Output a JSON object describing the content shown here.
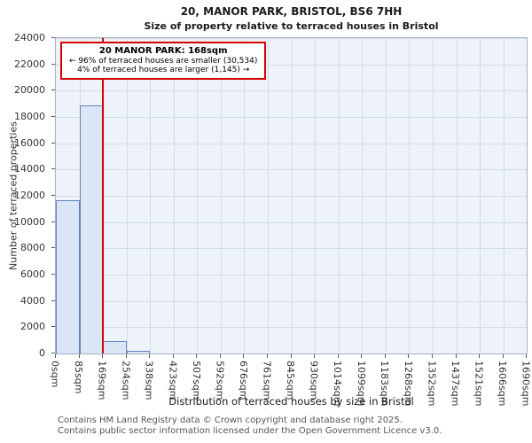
{
  "title": {
    "line1": "20, MANOR PARK, BRISTOL, BS6 7HH",
    "line2": "Size of property relative to terraced houses in Bristol"
  },
  "annotation": {
    "line1": "20 MANOR PARK: 168sqm",
    "line2": "← 96% of terraced houses are smaller (30,534)",
    "line3": "4% of terraced houses are larger (1,145) →"
  },
  "chart_data": {
    "type": "bar",
    "title": "20, MANOR PARK, BRISTOL, BS6 7HH — Size of property relative to terraced houses in Bristol",
    "xlabel": "Distribution of terraced houses by size in Bristol",
    "ylabel": "Number of terraced properties",
    "xlim": [
      0,
      1690
    ],
    "ylim": [
      0,
      24000
    ],
    "y_ticks": [
      0,
      2000,
      4000,
      6000,
      8000,
      10000,
      12000,
      14000,
      16000,
      18000,
      20000,
      22000,
      24000
    ],
    "bin_edges_sqm": [
      0,
      85,
      169,
      254,
      338,
      423,
      507,
      592,
      676,
      761,
      845,
      930,
      1014,
      1099,
      1183,
      1268,
      1352,
      1437,
      1521,
      1606,
      1690
    ],
    "x_tick_labels": [
      "0sqm",
      "85sqm",
      "169sqm",
      "254sqm",
      "338sqm",
      "423sqm",
      "507sqm",
      "592sqm",
      "676sqm",
      "761sqm",
      "845sqm",
      "930sqm",
      "1014sqm",
      "1099sqm",
      "1183sqm",
      "1268sqm",
      "1352sqm",
      "1437sqm",
      "1521sqm",
      "1606sqm",
      "1690sqm"
    ],
    "values": [
      11650,
      18884,
      950,
      195,
      0,
      0,
      0,
      0,
      0,
      0,
      0,
      0,
      0,
      0,
      0,
      0,
      0,
      0,
      0,
      0
    ],
    "marker_sqm": 168,
    "grid": true,
    "colors": {
      "bar_fill": "#dae5f6",
      "bar_border": "#5d86ba",
      "marker": "#d40000",
      "plot_background": "#eef2f9",
      "gridline": "#d3dcec",
      "annotation_border": "#d40000"
    }
  },
  "footer": {
    "line1": "Contains HM Land Registry data © Crown copyright and database right 2025.",
    "line2": "Contains public sector information licensed under the Open Government Licence v3.0."
  }
}
